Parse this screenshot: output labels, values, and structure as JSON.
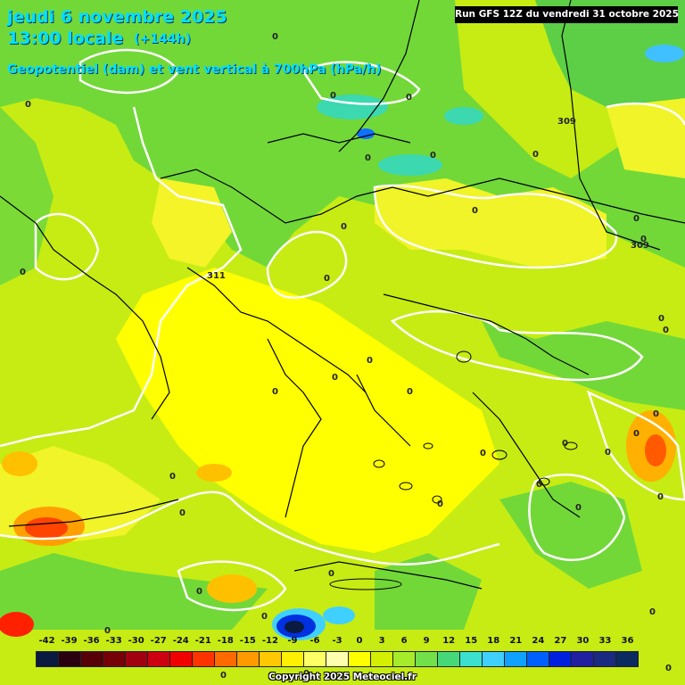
{
  "header": {
    "date": "jeudi 6 novembre 2025",
    "time": "13:00 locale",
    "lead": "(+144h)",
    "parameter": "Geopotentiel (dam) et vent vertical à 700hPa (hPa/h)"
  },
  "run_badge": "Run GFS 12Z du vendredi 31 octobre 2025",
  "legend": {
    "ticks": [
      "-42",
      "-39",
      "-36",
      "-33",
      "-30",
      "-27",
      "-24",
      "-21",
      "-18",
      "-15",
      "-12",
      "-9",
      "-6",
      "-3",
      "0",
      "3",
      "6",
      "9",
      "12",
      "15",
      "18",
      "21",
      "24",
      "27",
      "30",
      "33",
      "36"
    ],
    "colors": [
      "#0a1a40",
      "#2a0010",
      "#560008",
      "#760008",
      "#a00010",
      "#cc0010",
      "#f00000",
      "#ff3300",
      "#ff6a00",
      "#ff9a00",
      "#ffc800",
      "#fff000",
      "#ffff66",
      "#ffffb0",
      "#ffff00",
      "#d4f000",
      "#a6ec2a",
      "#72e04a",
      "#46d878",
      "#3ce0d0",
      "#40d0ff",
      "#10a0ff",
      "#0060ff",
      "#0020e0",
      "#2020a0",
      "#1a2a80",
      "#0a2a60"
    ]
  },
  "map_labels": {
    "zero": "0",
    "contour_309": "309",
    "contour_311": "311"
  },
  "copyright": "Copyright 2025 Meteociel.fr",
  "icons": [
    "map-canvas"
  ]
}
